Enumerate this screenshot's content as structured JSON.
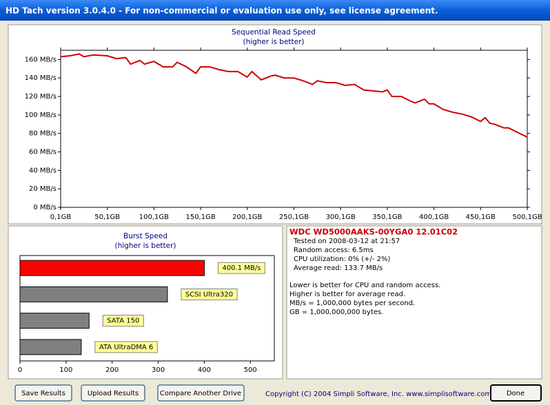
{
  "window": {
    "title": "HD Tach version 3.0.4.0  - For non-commercial or evaluation use only, see license agreement."
  },
  "chart_data": [
    {
      "type": "line",
      "title": "Sequential Read Speed",
      "subtitle": "(higher is better)",
      "x": [
        0.1,
        10,
        20,
        25,
        35,
        50,
        60,
        70,
        75,
        85,
        90,
        100,
        110,
        120,
        125,
        135,
        145,
        150,
        160,
        170,
        180,
        190,
        200,
        205,
        215,
        225,
        230,
        240,
        250,
        260,
        270,
        275,
        285,
        295,
        305,
        315,
        325,
        335,
        345,
        350,
        355,
        365,
        375,
        380,
        390,
        395,
        400,
        410,
        420,
        430,
        440,
        450,
        455,
        460,
        465,
        475,
        480,
        490,
        500.1
      ],
      "series": [
        {
          "name": "WDC WD5000AAKS-00YGA0 12.01C02",
          "color": "#cc0000",
          "values": [
            163,
            164,
            166,
            163,
            165,
            164,
            161,
            162,
            155,
            159,
            155,
            158,
            152,
            152,
            157,
            152,
            145,
            152,
            152,
            149,
            147,
            147,
            141,
            147,
            138,
            142,
            143,
            140,
            140,
            137,
            133,
            137,
            135,
            135,
            132,
            133,
            127,
            126,
            125,
            127,
            120,
            120,
            115,
            113,
            117,
            112,
            112,
            106,
            103,
            101,
            98,
            93,
            97,
            91,
            90,
            86,
            86,
            81,
            76
          ]
        }
      ],
      "xlim": [
        0.1,
        500.1
      ],
      "xticks": [
        {
          "value": 0.1,
          "label": "0,1GB"
        },
        {
          "value": 50.1,
          "label": "50,1GB"
        },
        {
          "value": 100.1,
          "label": "100,1GB"
        },
        {
          "value": 150.1,
          "label": "150,1GB"
        },
        {
          "value": 200.1,
          "label": "200,1GB"
        },
        {
          "value": 250.1,
          "label": "250,1GB"
        },
        {
          "value": 300.1,
          "label": "300,1GB"
        },
        {
          "value": 350.1,
          "label": "350,1GB"
        },
        {
          "value": 400.1,
          "label": "400,1GB"
        },
        {
          "value": 450.1,
          "label": "450,1GB"
        },
        {
          "value": 500.1,
          "label": "500,1GB"
        }
      ],
      "ylim": [
        0,
        170
      ],
      "yticks": [
        {
          "value": 0,
          "label": "0 MB/s"
        },
        {
          "value": 20,
          "label": "20 MB/s"
        },
        {
          "value": 40,
          "label": "40 MB/s"
        },
        {
          "value": 60,
          "label": "60 MB/s"
        },
        {
          "value": 80,
          "label": "80 MB/s"
        },
        {
          "value": 100,
          "label": "100 MB/s"
        },
        {
          "value": 120,
          "label": "120 MB/s"
        },
        {
          "value": 140,
          "label": "140 MB/s"
        },
        {
          "value": 160,
          "label": "160 MB/s"
        }
      ]
    },
    {
      "type": "hbar",
      "title": "Burst Speed",
      "subtitle": "(higher is better)",
      "labels": [
        "400.1 MB/s",
        "SCSI Ultra320",
        "SATA 150",
        "ATA UltraDMA 6"
      ],
      "values": [
        400.1,
        320,
        150,
        133
      ],
      "colors": [
        "#ff0000",
        "#808080",
        "#808080",
        "#808080"
      ],
      "xlim": [
        0,
        552
      ],
      "xticks": [
        0,
        100,
        200,
        300,
        400,
        500
      ]
    }
  ],
  "info": {
    "drive": "WDC WD5000AAKS-00YGA0 12.01C02",
    "details": [
      "Tested on 2008-03-12 at 21:57",
      "Random access: 6.5ms",
      "CPU utilization: 0% (+/- 2%)",
      "Average read: 133.7 MB/s"
    ],
    "notes": [
      "Lower is better for CPU and random access.",
      "Higher is better for average read.",
      "MB/s = 1,000,000 bytes per second.",
      "GB = 1,000,000,000 bytes."
    ]
  },
  "buttons": [
    "Save Results",
    "Upload Results",
    "Compare Another Drive",
    "Done"
  ],
  "footer": {
    "copyright": "Copyright (C) 2004 Simpli Software, Inc. www.simplisoftware.com"
  }
}
